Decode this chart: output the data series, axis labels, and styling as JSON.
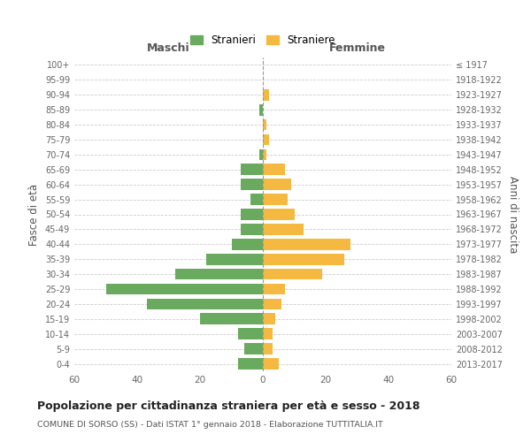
{
  "age_groups": [
    "100+",
    "95-99",
    "90-94",
    "85-89",
    "80-84",
    "75-79",
    "70-74",
    "65-69",
    "60-64",
    "55-59",
    "50-54",
    "45-49",
    "40-44",
    "35-39",
    "30-34",
    "25-29",
    "20-24",
    "15-19",
    "10-14",
    "5-9",
    "0-4"
  ],
  "birth_years": [
    "≤ 1917",
    "1918-1922",
    "1923-1927",
    "1928-1932",
    "1933-1937",
    "1938-1942",
    "1943-1947",
    "1948-1952",
    "1953-1957",
    "1958-1962",
    "1963-1967",
    "1968-1972",
    "1973-1977",
    "1978-1982",
    "1983-1987",
    "1988-1992",
    "1993-1997",
    "1998-2002",
    "2003-2007",
    "2008-2012",
    "2013-2017"
  ],
  "males": [
    0,
    0,
    0,
    1,
    0,
    0,
    1,
    7,
    7,
    4,
    7,
    7,
    10,
    18,
    28,
    50,
    37,
    20,
    8,
    6,
    8
  ],
  "females": [
    0,
    0,
    2,
    0,
    1,
    2,
    1,
    7,
    9,
    8,
    10,
    13,
    28,
    26,
    19,
    7,
    6,
    4,
    3,
    3,
    5
  ],
  "male_color": "#6aaa5e",
  "female_color": "#f5b942",
  "grid_color": "#cccccc",
  "title": "Popolazione per cittadinanza straniera per età e sesso - 2018",
  "subtitle": "COMUNE DI SORSO (SS) - Dati ISTAT 1° gennaio 2018 - Elaborazione TUTTITALIA.IT",
  "legend_male": "Stranieri",
  "legend_female": "Straniere",
  "xlabel_left": "Maschi",
  "xlabel_right": "Femmine",
  "ylabel_left": "Fasce di età",
  "ylabel_right": "Anni di nascita",
  "xlim": 60,
  "background_color": "#ffffff"
}
